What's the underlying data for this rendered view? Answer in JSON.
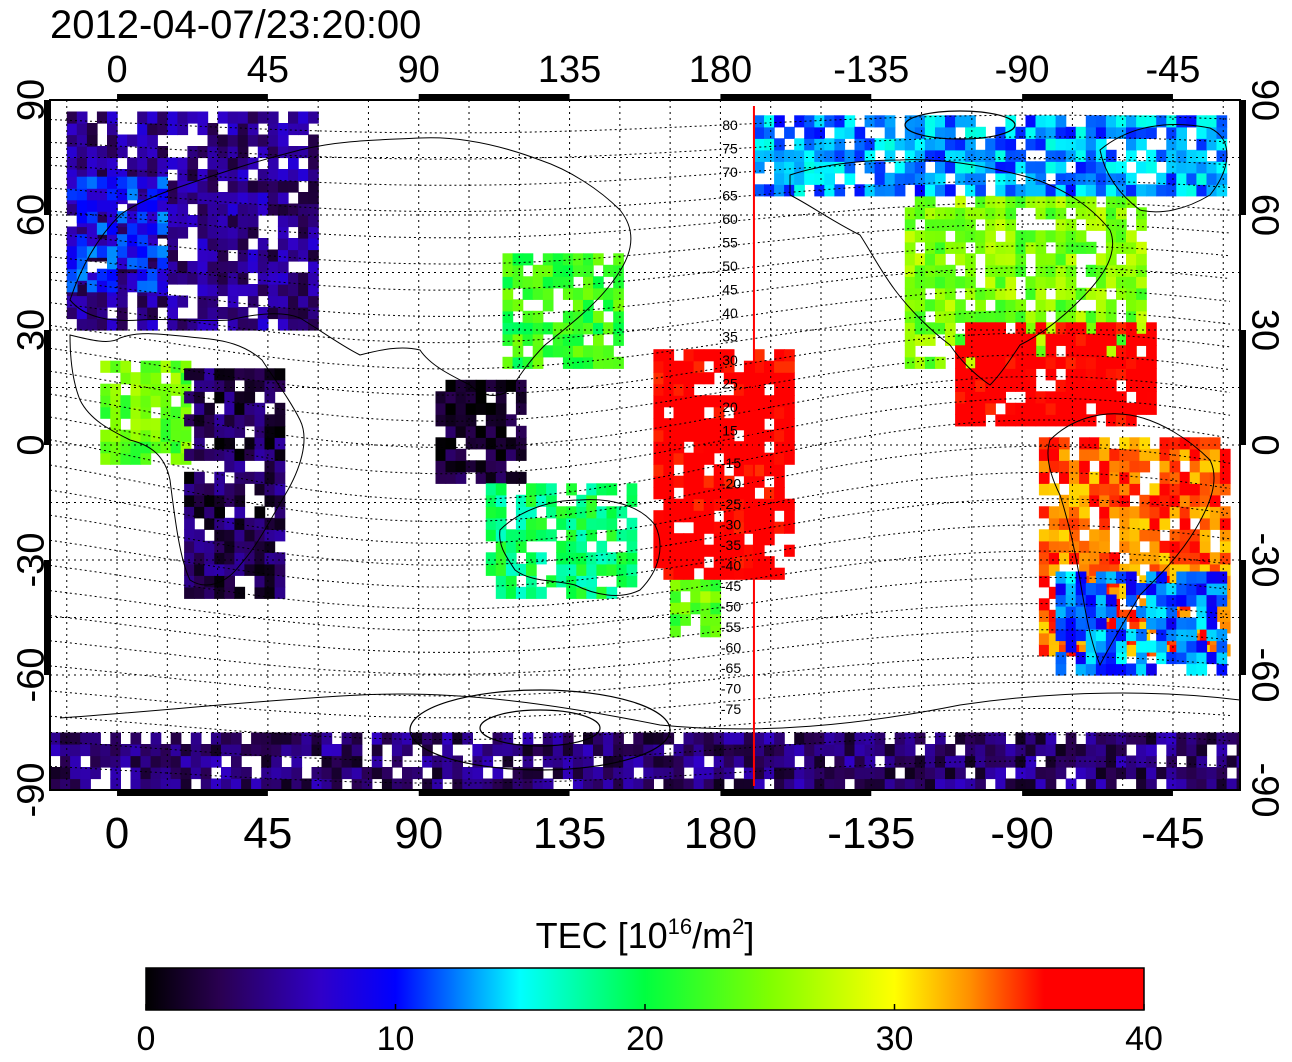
{
  "title": "2012-04-07/23:20:00",
  "map": {
    "lon_range": [
      -20,
      335
    ],
    "lat_range": [
      -90,
      90
    ],
    "lon_tick_values": [
      0,
      45,
      90,
      135,
      180,
      225,
      270,
      315
    ],
    "lon_tick_labels": [
      "0",
      "45",
      "90",
      "135",
      "180",
      "-135",
      "-90",
      "-45"
    ],
    "lat_tick_values": [
      90,
      60,
      30,
      0,
      -30,
      -60,
      -90
    ],
    "lat_tick_labels": [
      "90",
      "60",
      "30",
      "0",
      "-30",
      "-60",
      "-90"
    ],
    "grid_lines": "dotted",
    "terminator_lon": 190,
    "magnetic_lat_labels_north": [
      "80",
      "75",
      "70",
      "65",
      "60",
      "55",
      "50",
      "45",
      "40",
      "35",
      "30",
      "25",
      "20",
      "15"
    ],
    "magnetic_lat_labels_south": [
      "-15",
      "-20",
      "-25",
      "-30",
      "-35",
      "-40",
      "-45",
      "-50",
      "-55",
      "-60",
      "-65",
      "-70",
      "-75"
    ],
    "terminator_color": "#ff0000"
  },
  "colorbar": {
    "title_main": "TEC  [10",
    "title_exp": "16",
    "title_unit": "/m",
    "title_exp2": "2",
    "title_close": "]",
    "min": 0,
    "max": 40,
    "tick_values": [
      0,
      10,
      20,
      30,
      40
    ],
    "tick_labels": [
      "0",
      "10",
      "20",
      "30",
      "40"
    ],
    "stops": [
      {
        "v": 0,
        "color": "#000000"
      },
      {
        "v": 3,
        "color": "#2a0052"
      },
      {
        "v": 7,
        "color": "#3000c8"
      },
      {
        "v": 10,
        "color": "#0000ff"
      },
      {
        "v": 15,
        "color": "#00ffff"
      },
      {
        "v": 20,
        "color": "#00ff40"
      },
      {
        "v": 25,
        "color": "#80ff00"
      },
      {
        "v": 30,
        "color": "#ffff00"
      },
      {
        "v": 33,
        "color": "#ff9000"
      },
      {
        "v": 36,
        "color": "#ff0000"
      },
      {
        "v": 40,
        "color": "#ff0000"
      }
    ]
  },
  "chart_data": {
    "type": "heatmap",
    "quantity": "TEC",
    "units": "10^16/m^2",
    "regions": [
      {
        "lon": [
          -15,
          60
        ],
        "lat": [
          30,
          85
        ],
        "tec": 5
      },
      {
        "lon": [
          -15,
          15
        ],
        "lat": [
          40,
          70
        ],
        "tec": 10
      },
      {
        "lon": [
          -5,
          20
        ],
        "lat": [
          -5,
          20
        ],
        "tec": 24
      },
      {
        "lon": [
          20,
          50
        ],
        "lat": [
          -40,
          20
        ],
        "tec": 3
      },
      {
        "lon": [
          95,
          120
        ],
        "lat": [
          -10,
          15
        ],
        "tec": 1
      },
      {
        "lon": [
          115,
          150
        ],
        "lat": [
          20,
          50
        ],
        "tec": 22
      },
      {
        "lon": [
          110,
          155
        ],
        "lat": [
          -40,
          -10
        ],
        "tec": 19
      },
      {
        "lon": [
          165,
          180
        ],
        "lat": [
          -50,
          -35
        ],
        "tec": 24
      },
      {
        "lon": [
          160,
          200
        ],
        "lat": [
          -35,
          25
        ],
        "tec": 38
      },
      {
        "lon": [
          235,
          305
        ],
        "lat": [
          20,
          65
        ],
        "tec": 25
      },
      {
        "lon": [
          250,
          310
        ],
        "lat": [
          5,
          30
        ],
        "tec": 38
      },
      {
        "lon": [
          275,
          330
        ],
        "lat": [
          -55,
          0
        ],
        "tec": 34
      },
      {
        "lon": [
          280,
          330
        ],
        "lat": [
          -60,
          -35
        ],
        "tec": 12
      },
      {
        "lon": [
          190,
          330
        ],
        "lat": [
          65,
          85
        ],
        "tec": 13
      },
      {
        "lon": [
          -20,
          335
        ],
        "lat": [
          -90,
          -75
        ],
        "tec": 4
      }
    ]
  }
}
